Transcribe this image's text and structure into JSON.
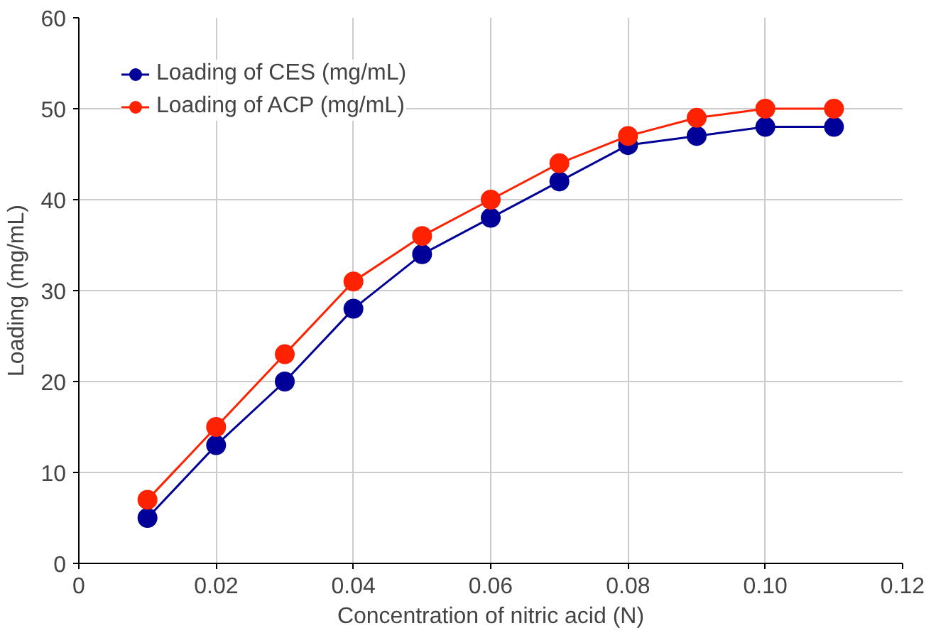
{
  "chart_data": {
    "type": "line",
    "xlabel": "Concentration of nitric acid (N)",
    "ylabel": "Loading (mg/mL)",
    "x": [
      0.01,
      0.02,
      0.03,
      0.04,
      0.05,
      0.06,
      0.07,
      0.08,
      0.09,
      0.1,
      0.11
    ],
    "series": [
      {
        "name": "Loading of CES (mg/mL)",
        "color": "#000099",
        "values": [
          5,
          13,
          20,
          28,
          34,
          38,
          42,
          46,
          47,
          48,
          48
        ]
      },
      {
        "name": "Loading of ACP (mg/mL)",
        "color": "#ff2200",
        "values": [
          7,
          15,
          23,
          31,
          36,
          40,
          44,
          47,
          49,
          50,
          50
        ]
      }
    ],
    "xlim": [
      0,
      0.12
    ],
    "xticks": [
      0,
      0.02,
      0.04,
      0.06,
      0.08,
      {
        "value": 0.1,
        "label": "0.10"
      },
      0.12
    ],
    "ylim": [
      0,
      60
    ],
    "yticks": [
      0,
      10,
      20,
      30,
      40,
      50,
      60
    ],
    "grid": true,
    "legend": "top left",
    "marker": "circle",
    "line_style": "solid"
  }
}
